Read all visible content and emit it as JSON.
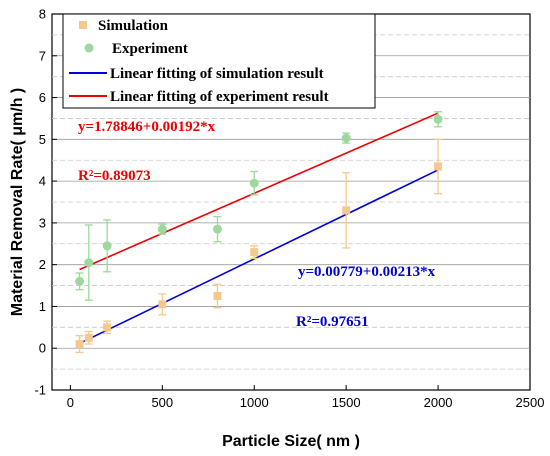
{
  "chart_data": {
    "type": "scatter",
    "title": "",
    "xlabel": "Particle Size( nm )",
    "ylabel": "Material Removal Rate( μm/h )",
    "xlim": [
      -100,
      2500
    ],
    "ylim": [
      -1,
      8
    ],
    "xticks": [
      0,
      500,
      1000,
      1500,
      2000,
      2500
    ],
    "yticks": [
      -1,
      0,
      1,
      2,
      3,
      4,
      5,
      6,
      7,
      8
    ],
    "grid": true,
    "legend_position": "top-left",
    "series": [
      {
        "name": "Simulation",
        "marker": "square",
        "color": "#F5C98E",
        "points": [
          {
            "x": 50,
            "y": 0.1,
            "err": 0.2
          },
          {
            "x": 100,
            "y": 0.25,
            "err": 0.15
          },
          {
            "x": 200,
            "y": 0.5,
            "err": 0.15
          },
          {
            "x": 500,
            "y": 1.05,
            "err": 0.25
          },
          {
            "x": 800,
            "y": 1.25,
            "err": 0.28
          },
          {
            "x": 1000,
            "y": 2.3,
            "err": 0.15
          },
          {
            "x": 1500,
            "y": 3.3,
            "err": 0.9
          },
          {
            "x": 2000,
            "y": 4.35,
            "err": 0.65
          }
        ]
      },
      {
        "name": "Experiment",
        "marker": "circle",
        "color": "#9ED89C",
        "points": [
          {
            "x": 50,
            "y": 1.6,
            "err": 0.2
          },
          {
            "x": 100,
            "y": 2.05,
            "err": 0.9
          },
          {
            "x": 200,
            "y": 2.45,
            "err": 0.62
          },
          {
            "x": 500,
            "y": 2.85,
            "err": 0.12
          },
          {
            "x": 800,
            "y": 2.85,
            "err": 0.3
          },
          {
            "x": 1000,
            "y": 3.95,
            "err": 0.28
          },
          {
            "x": 1500,
            "y": 5.03,
            "err": 0.12
          },
          {
            "x": 2000,
            "y": 5.48,
            "err": 0.18
          }
        ]
      }
    ],
    "fit_lines": [
      {
        "name": "Linear fitting of simulation result",
        "color": "#0000DD",
        "intercept": 0.00779,
        "slope": 0.00213,
        "x_range": [
          50,
          2000
        ]
      },
      {
        "name": "Linear fitting of experiment result",
        "color": "#EE0000",
        "intercept": 1.78846,
        "slope": 0.00192,
        "x_range": [
          50,
          2000
        ]
      }
    ],
    "annotations": [
      {
        "text": "y=1.78846+0.00192*x",
        "color": "#EE0000"
      },
      {
        "text": "R²=0.89073",
        "color": "#EE0000"
      },
      {
        "text": "y=0.00779+0.00213*x",
        "color": "#0000DD"
      },
      {
        "text": "R²=0.97651",
        "color": "#0000DD"
      }
    ]
  }
}
